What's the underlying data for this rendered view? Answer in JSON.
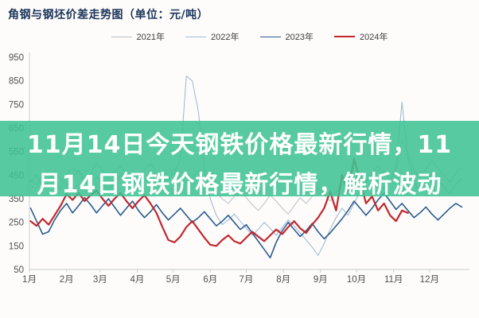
{
  "chart": {
    "title": "角钢与钢坯价差走势图（单位：元/吨）",
    "title_color": "#1c3459"
  },
  "overlay": {
    "line1": "11月14日今天钢铁价格最新行情，11",
    "line2": "月14日钢铁价格最新行情，解析波动",
    "full_text": "11月14日今天钢铁价格最新行情，11月14日钢铁价格最新行情，解析波动",
    "background": "#3ec293",
    "text_color": "#ffffff"
  },
  "axis": {
    "line_color": "#c9ccd1",
    "label_color": "#4f4f4f"
  },
  "chart_data": {
    "type": "line",
    "title": "角钢与钢坯价差走势图（单位：元/吨）",
    "unit": "元/吨",
    "x_labels": [
      "1月",
      "2月",
      "3月",
      "4月",
      "5月",
      "6月",
      "7月",
      "8月",
      "9月",
      "10月",
      "11月",
      "12月"
    ],
    "y_ticks": [
      950,
      850,
      750,
      650,
      550,
      450,
      350,
      250,
      150,
      50
    ],
    "ylim": [
      50,
      950
    ],
    "grid": false,
    "legend_position": "top",
    "x_day_start": 2,
    "x_day_step": 5,
    "series": [
      {
        "name": "2021年",
        "color": "#b9bfc6",
        "width": 1,
        "values": [
          430,
          410,
          455,
          470,
          430,
          390,
          445,
          480,
          460,
          425,
          455,
          500,
          470,
          435,
          465,
          490,
          455,
          425,
          445,
          475,
          500,
          460,
          430,
          455,
          480,
          445,
          415,
          440,
          470,
          435,
          405,
          375,
          350,
          330,
          360,
          390,
          355,
          325,
          300,
          330,
          365,
          340,
          310,
          285,
          320,
          355,
          330,
          360,
          395,
          370,
          340,
          375,
          410,
          445,
          480,
          450,
          420,
          455,
          490,
          460,
          430,
          465,
          600,
          540,
          470,
          440,
          475,
          510,
          480,
          450,
          420,
          455,
          485
        ]
      },
      {
        "name": "2022年",
        "color": "#a3bbd2",
        "width": 1.1,
        "values": [
          420,
          450,
          400,
          430,
          465,
          435,
          405,
          440,
          470,
          440,
          410,
          445,
          415,
          385,
          420,
          450,
          415,
          385,
          410,
          440,
          405,
          375,
          405,
          435,
          460,
          520,
          870,
          850,
          720,
          480,
          350,
          280,
          240,
          260,
          285,
          255,
          225,
          195,
          220,
          250,
          225,
          195,
          230,
          260,
          235,
          205,
          175,
          145,
          110,
          160,
          220,
          270,
          310,
          280,
          330,
          380,
          420,
          460,
          430,
          390,
          430,
          480,
          760,
          520,
          420,
          380,
          420,
          460,
          430,
          400,
          370,
          410,
          435
        ]
      },
      {
        "name": "2023年",
        "color": "#2b5c8f",
        "width": 1.6,
        "values": [
          310,
          255,
          200,
          210,
          260,
          300,
          330,
          290,
          320,
          355,
          325,
          290,
          320,
          350,
          315,
          280,
          310,
          340,
          300,
          270,
          295,
          325,
          290,
          260,
          285,
          310,
          280,
          250,
          270,
          295,
          265,
          235,
          255,
          280,
          250,
          220,
          240,
          205,
          170,
          135,
          100,
          165,
          215,
          250,
          220,
          190,
          215,
          245,
          210,
          180,
          205,
          235,
          265,
          300,
          340,
          310,
          280,
          310,
          345,
          375,
          340,
          305,
          330,
          300,
          270,
          290,
          315,
          285,
          260,
          285,
          310,
          330,
          315
        ]
      },
      {
        "name": "2024年",
        "color": "#c2272d",
        "width": 2.2,
        "values": [
          255,
          235,
          265,
          240,
          280,
          320,
          370,
          345,
          375,
          340,
          365,
          385,
          350,
          320,
          350,
          375,
          340,
          310,
          340,
          365,
          330,
          290,
          230,
          175,
          165,
          190,
          230,
          255,
          220,
          185,
          155,
          150,
          175,
          195,
          170,
          160,
          185,
          210,
          190,
          170,
          195,
          220,
          200,
          230,
          255,
          225,
          205,
          240,
          270,
          310,
          380,
          300,
          450,
          380,
          520,
          430,
          330,
          360,
          300,
          330,
          280,
          255,
          300,
          290
        ]
      }
    ]
  }
}
